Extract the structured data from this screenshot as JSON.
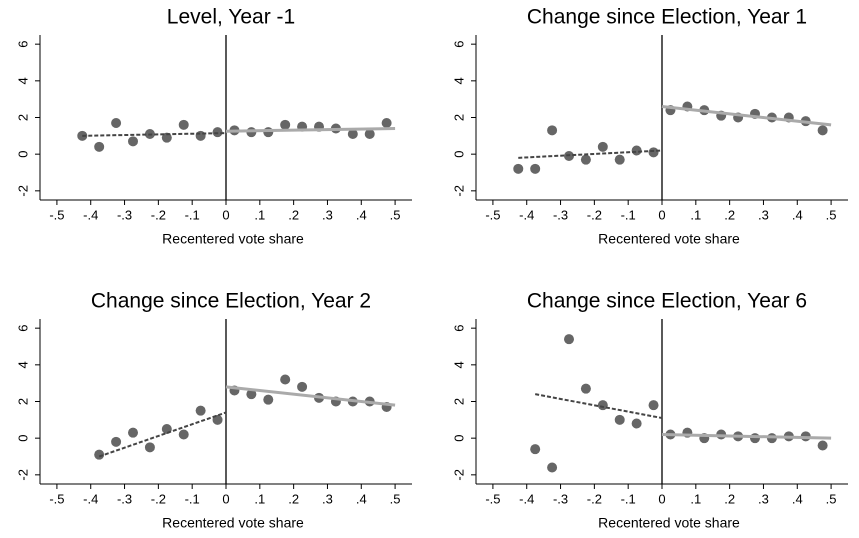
{
  "chart_data": [
    {
      "type": "scatter",
      "title": "Level, Year -1",
      "xlabel": "Recentered vote share",
      "color": "#666666",
      "x": [
        -0.425,
        -0.375,
        -0.325,
        -0.275,
        -0.225,
        -0.175,
        -0.125,
        -0.075,
        -0.025,
        0.025,
        0.075,
        0.125,
        0.175,
        0.225,
        0.275,
        0.325,
        0.375,
        0.425,
        0.475
      ],
      "values": [
        1.0,
        0.4,
        1.7,
        0.7,
        1.1,
        0.9,
        1.6,
        1.0,
        1.2,
        1.3,
        1.2,
        1.2,
        1.6,
        1.5,
        1.5,
        1.4,
        1.1,
        1.1,
        1.7
      ],
      "fits": [
        {
          "x": [
            -0.425,
            0
          ],
          "values": [
            1.0,
            1.15
          ],
          "color": "#444444",
          "style": "dashed"
        },
        {
          "x": [
            0,
            0.5
          ],
          "values": [
            1.25,
            1.4
          ],
          "color": "#aaaaaa",
          "style": "solid"
        }
      ],
      "xlim": [
        -0.55,
        0.55
      ],
      "ylim": [
        -2.5,
        6.5
      ],
      "xticks": [
        {
          "value": -0.5,
          "label": "-.5"
        },
        {
          "value": -0.4,
          "label": "-.4"
        },
        {
          "value": -0.3,
          "label": "-.3"
        },
        {
          "value": -0.2,
          "label": "-.2"
        },
        {
          "value": -0.1,
          "label": "-.1"
        },
        0,
        {
          "value": 0.1,
          "label": ".1"
        },
        {
          "value": 0.2,
          "label": ".2"
        },
        {
          "value": 0.3,
          "label": ".3"
        },
        {
          "value": 0.4,
          "label": ".4"
        },
        {
          "value": 0.5,
          "label": ".5"
        }
      ],
      "yticks": [
        -2,
        0,
        2,
        4,
        6
      ]
    },
    {
      "type": "scatter",
      "title": "Change since Election, Year 1",
      "xlabel": "Recentered vote share",
      "color": "#666666",
      "x": [
        -0.425,
        -0.375,
        -0.325,
        -0.275,
        -0.225,
        -0.175,
        -0.125,
        -0.075,
        -0.025,
        0.025,
        0.075,
        0.125,
        0.175,
        0.225,
        0.275,
        0.325,
        0.375,
        0.425,
        0.475
      ],
      "values": [
        -0.8,
        -0.8,
        1.3,
        -0.1,
        -0.3,
        0.4,
        -0.3,
        0.2,
        0.1,
        2.4,
        2.6,
        2.4,
        2.1,
        2.0,
        2.2,
        2.0,
        2.0,
        1.8,
        1.3
      ],
      "fits": [
        {
          "x": [
            -0.425,
            0
          ],
          "values": [
            -0.2,
            0.2
          ],
          "color": "#444444",
          "style": "dashed"
        },
        {
          "x": [
            0,
            0.5
          ],
          "values": [
            2.6,
            1.6
          ],
          "color": "#aaaaaa",
          "style": "solid"
        }
      ],
      "xlim": [
        -0.55,
        0.55
      ],
      "ylim": [
        -2.5,
        6.5
      ],
      "xticks": [
        {
          "value": -0.5,
          "label": "-.5"
        },
        {
          "value": -0.4,
          "label": "-.4"
        },
        {
          "value": -0.3,
          "label": "-.3"
        },
        {
          "value": -0.2,
          "label": "-.2"
        },
        {
          "value": -0.1,
          "label": "-.1"
        },
        0,
        {
          "value": 0.1,
          "label": ".1"
        },
        {
          "value": 0.2,
          "label": ".2"
        },
        {
          "value": 0.3,
          "label": ".3"
        },
        {
          "value": 0.4,
          "label": ".4"
        },
        {
          "value": 0.5,
          "label": ".5"
        }
      ],
      "yticks": [
        -2,
        0,
        2,
        4,
        6
      ]
    },
    {
      "type": "scatter",
      "title": "Change since Election, Year 2",
      "xlabel": "Recentered vote share",
      "color": "#666666",
      "x": [
        -0.375,
        -0.325,
        -0.275,
        -0.225,
        -0.175,
        -0.125,
        -0.075,
        -0.025,
        0.025,
        0.075,
        0.125,
        0.175,
        0.225,
        0.275,
        0.325,
        0.375,
        0.425,
        0.475
      ],
      "values": [
        -0.9,
        -0.2,
        0.3,
        -0.5,
        0.5,
        0.2,
        1.5,
        1.0,
        2.6,
        2.4,
        2.1,
        3.2,
        2.8,
        2.2,
        2.0,
        2.0,
        2.0,
        1.7
      ],
      "fits": [
        {
          "x": [
            -0.375,
            0
          ],
          "values": [
            -1.0,
            1.4
          ],
          "color": "#444444",
          "style": "dashed"
        },
        {
          "x": [
            0,
            0.5
          ],
          "values": [
            2.8,
            1.8
          ],
          "color": "#aaaaaa",
          "style": "solid"
        }
      ],
      "xlim": [
        -0.55,
        0.55
      ],
      "ylim": [
        -2.5,
        6.5
      ],
      "xticks": [
        {
          "value": -0.5,
          "label": "-.5"
        },
        {
          "value": -0.4,
          "label": "-.4"
        },
        {
          "value": -0.3,
          "label": "-.3"
        },
        {
          "value": -0.2,
          "label": "-.2"
        },
        {
          "value": -0.1,
          "label": "-.1"
        },
        0,
        {
          "value": 0.1,
          "label": ".1"
        },
        {
          "value": 0.2,
          "label": ".2"
        },
        {
          "value": 0.3,
          "label": ".3"
        },
        {
          "value": 0.4,
          "label": ".4"
        },
        {
          "value": 0.5,
          "label": ".5"
        }
      ],
      "yticks": [
        -2,
        0,
        2,
        4,
        6
      ]
    },
    {
      "type": "scatter",
      "title": "Change since Election, Year 6",
      "xlabel": "Recentered vote share",
      "color": "#666666",
      "x": [
        -0.375,
        -0.325,
        -0.275,
        -0.225,
        -0.175,
        -0.125,
        -0.075,
        -0.025,
        0.025,
        0.075,
        0.125,
        0.175,
        0.225,
        0.275,
        0.325,
        0.375,
        0.425,
        0.475
      ],
      "values": [
        -0.6,
        -1.6,
        5.4,
        2.7,
        1.8,
        1.0,
        0.8,
        1.8,
        0.2,
        0.3,
        0.0,
        0.2,
        0.1,
        0.0,
        0.0,
        0.1,
        0.1,
        -0.4
      ],
      "fits": [
        {
          "x": [
            -0.375,
            0
          ],
          "values": [
            2.4,
            1.1
          ],
          "color": "#444444",
          "style": "dashed"
        },
        {
          "x": [
            0,
            0.5
          ],
          "values": [
            0.2,
            0.0
          ],
          "color": "#aaaaaa",
          "style": "solid"
        }
      ],
      "xlim": [
        -0.55,
        0.55
      ],
      "ylim": [
        -2.5,
        6.5
      ],
      "xticks": [
        {
          "value": -0.5,
          "label": "-.5"
        },
        {
          "value": -0.4,
          "label": "-.4"
        },
        {
          "value": -0.3,
          "label": "-.3"
        },
        {
          "value": -0.2,
          "label": "-.2"
        },
        {
          "value": -0.1,
          "label": "-.1"
        },
        0,
        {
          "value": 0.1,
          "label": ".1"
        },
        {
          "value": 0.2,
          "label": ".2"
        },
        {
          "value": 0.3,
          "label": ".3"
        },
        {
          "value": 0.4,
          "label": ".4"
        },
        {
          "value": 0.5,
          "label": ".5"
        }
      ],
      "yticks": [
        -2,
        0,
        2,
        4,
        6
      ]
    }
  ]
}
